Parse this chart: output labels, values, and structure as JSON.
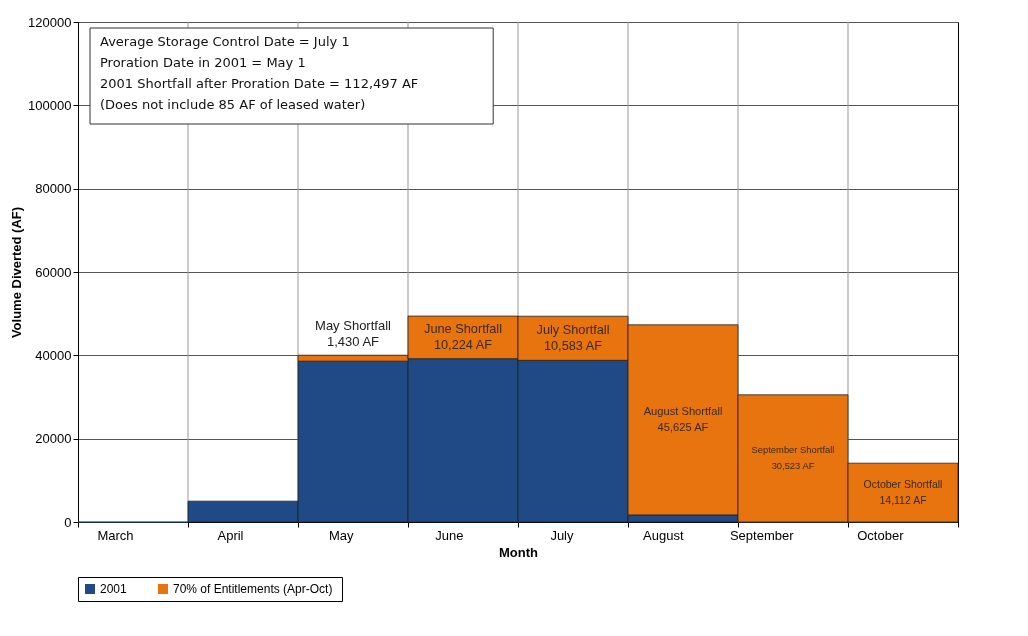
{
  "chart_data": {
    "type": "bar",
    "stacked": true,
    "xlabel": "Month",
    "ylabel": "Volume Diverted (AF)",
    "categories": [
      "March",
      "April",
      "May",
      "June",
      "July",
      "August",
      "September",
      "October"
    ],
    "series": [
      {
        "name": "2001",
        "color": "#1f4a86",
        "values": [
          0,
          5000,
          38600,
          39200,
          38800,
          1700,
          0,
          0
        ]
      },
      {
        "name": "70% of Entitlements  (Apr-Oct)",
        "color": "#e8740f",
        "values": [
          null,
          null,
          1430,
          10224,
          10583,
          45625,
          30523,
          14112
        ],
        "value_labels": [
          null,
          null,
          "May Shortfall\n1,430 AF",
          "June Shortfall\n10,224 AF",
          "July Shortfall\n10,583 AF",
          "August Shortfall\n45,625 AF",
          "September Shortfall\n30,523 AF",
          "October Shortfall\n14,112 AF"
        ]
      }
    ],
    "ylim": [
      0,
      120000
    ],
    "yticks": [
      0,
      20000,
      40000,
      60000,
      80000,
      100000,
      120000
    ],
    "grid": true,
    "legend": "bottom",
    "annotations": [
      "Average Storage Control Date = July 1",
      "Proration Date in 2001 = May 1",
      "2001 Shortfall after Proration Date = 112,497 AF",
      "(Does not include 85 AF of leased water)"
    ]
  }
}
